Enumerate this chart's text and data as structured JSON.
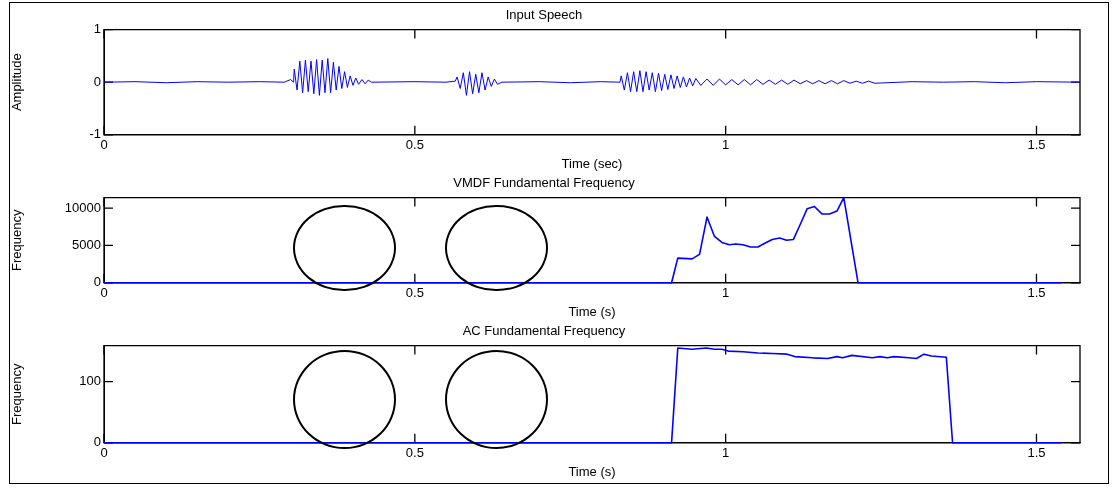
{
  "chart_data": [
    {
      "type": "line",
      "title": "Input Speech",
      "xlabel": "Time (sec)",
      "ylabel": "Amplitude",
      "color": "#0000ff",
      "marker": "none",
      "line_style": "solid",
      "grid": false,
      "legend": false,
      "xlim": [
        0,
        1.57
      ],
      "xticks": [
        0,
        0.5,
        1,
        1.5
      ],
      "ylim": [
        -1,
        1
      ],
      "yticks": [
        -1,
        0,
        1
      ],
      "x": [
        0,
        0.05,
        0.1,
        0.15,
        0.2,
        0.25,
        0.29,
        0.3,
        0.305,
        0.306,
        0.3105,
        0.315,
        0.3195,
        0.324,
        0.3285,
        0.333,
        0.3375,
        0.342,
        0.3465,
        0.351,
        0.3555,
        0.36,
        0.3645,
        0.369,
        0.3735,
        0.378,
        0.3825,
        0.387,
        0.3915,
        0.396,
        0.4005,
        0.405,
        0.4095,
        0.415,
        0.42,
        0.425,
        0.43,
        0.5,
        0.55,
        0.565,
        0.568,
        0.573,
        0.578,
        0.583,
        0.588,
        0.593,
        0.598,
        0.603,
        0.608,
        0.613,
        0.618,
        0.623,
        0.628,
        0.633,
        0.64,
        0.7,
        0.75,
        0.8,
        0.83,
        0.832,
        0.837,
        0.842,
        0.847,
        0.852,
        0.857,
        0.862,
        0.867,
        0.872,
        0.877,
        0.882,
        0.887,
        0.892,
        0.897,
        0.902,
        0.907,
        0.912,
        0.917,
        0.922,
        0.927,
        0.932,
        0.937,
        0.942,
        0.947,
        0.952,
        0.96,
        0.97,
        0.98,
        0.99,
        1.0,
        1.01,
        1.02,
        1.03,
        1.04,
        1.05,
        1.06,
        1.07,
        1.08,
        1.09,
        1.1,
        1.11,
        1.12,
        1.13,
        1.14,
        1.15,
        1.16,
        1.17,
        1.18,
        1.19,
        1.2,
        1.21,
        1.22,
        1.23,
        1.24,
        1.3,
        1.35,
        1.4,
        1.45,
        1.5,
        1.57
      ],
      "values": [
        0,
        0.01,
        -0.01,
        0.01,
        0,
        0.01,
        0,
        0.05,
        0,
        0.25,
        -0.15,
        0.4,
        -0.2,
        0.42,
        -0.18,
        0.4,
        -0.22,
        0.43,
        -0.25,
        0.42,
        -0.2,
        0.45,
        -0.2,
        0.38,
        -0.15,
        0.3,
        -0.12,
        0.2,
        -0.1,
        0.12,
        -0.06,
        0.08,
        -0.04,
        0.05,
        -0.03,
        0.04,
        0,
        0.01,
        0,
        0.02,
        0.1,
        -0.12,
        0.18,
        -0.25,
        0.2,
        -0.22,
        0.15,
        -0.2,
        0.18,
        -0.15,
        0.1,
        -0.08,
        0.06,
        -0.04,
        0,
        0.01,
        -0.01,
        0.01,
        0,
        0.12,
        -0.15,
        0.18,
        -0.18,
        0.2,
        -0.18,
        0.22,
        -0.18,
        0.2,
        -0.15,
        0.18,
        -0.18,
        0.17,
        -0.16,
        0.15,
        -0.14,
        0.14,
        -0.12,
        0.12,
        -0.1,
        0.1,
        -0.09,
        0.08,
        -0.07,
        0.07,
        -0.06,
        0.06,
        -0.06,
        0.06,
        -0.05,
        0.05,
        -0.05,
        0.05,
        -0.05,
        0.05,
        -0.04,
        0.04,
        -0.04,
        0.04,
        -0.04,
        0.04,
        -0.03,
        0.03,
        -0.03,
        0.03,
        -0.03,
        0.03,
        -0.03,
        0.03,
        -0.02,
        0.02,
        -0.02,
        0.02,
        -0.02,
        0.01,
        0,
        0.01,
        -0.01,
        0.01,
        0
      ]
    },
    {
      "type": "line",
      "title": "VMDF Fundamental Frequency",
      "xlabel": "Time (s)",
      "ylabel": "Frequency",
      "color": "#0000ff",
      "marker": "none",
      "line_style": "solid",
      "grid": false,
      "legend": false,
      "xlim": [
        0,
        1.57
      ],
      "xticks": [
        0,
        0.5,
        1,
        1.5
      ],
      "ylim": [
        0,
        11400
      ],
      "yticks": [
        0,
        5000,
        10000
      ],
      "x": [
        0,
        0.913,
        0.923,
        0.946,
        0.958,
        0.97,
        0.982,
        0.994,
        1.006,
        1.016,
        1.028,
        1.04,
        1.052,
        1.063,
        1.075,
        1.087,
        1.098,
        1.109,
        1.121,
        1.131,
        1.143,
        1.155,
        1.167,
        1.179,
        1.19,
        1.213,
        1.54
      ],
      "values": [
        0,
        0,
        3300,
        3200,
        3800,
        8800,
        6200,
        5400,
        5100,
        5200,
        5100,
        4800,
        4800,
        5300,
        5800,
        6000,
        5700,
        5800,
        8000,
        9900,
        10200,
        9200,
        9200,
        9600,
        11400,
        0,
        0
      ]
    },
    {
      "type": "line",
      "title": "AC Fundamental Frequency",
      "xlabel": "Time (s)",
      "ylabel": "Frequency",
      "color": "#0000ff",
      "marker": "none",
      "line_style": "solid",
      "grid": false,
      "legend": false,
      "xlim": [
        0,
        1.57
      ],
      "xticks": [
        0,
        0.5,
        1,
        1.5
      ],
      "ylim": [
        0,
        159
      ],
      "yticks": [
        0,
        100
      ],
      "x": [
        0,
        0.913,
        0.923,
        0.946,
        0.969,
        0.982,
        0.994,
        1.004,
        1.028,
        1.052,
        1.075,
        1.099,
        1.111,
        1.14,
        1.164,
        1.179,
        1.188,
        1.203,
        1.236,
        1.248,
        1.26,
        1.271,
        1.295,
        1.307,
        1.319,
        1.331,
        1.355,
        1.365,
        1.54
      ],
      "values": [
        0,
        0,
        155,
        153,
        155,
        153,
        153,
        150,
        149,
        147,
        146,
        145,
        141,
        139,
        138,
        141,
        139,
        143,
        139,
        141,
        139,
        141,
        139,
        138,
        145,
        142,
        140,
        0,
        0
      ]
    }
  ]
}
